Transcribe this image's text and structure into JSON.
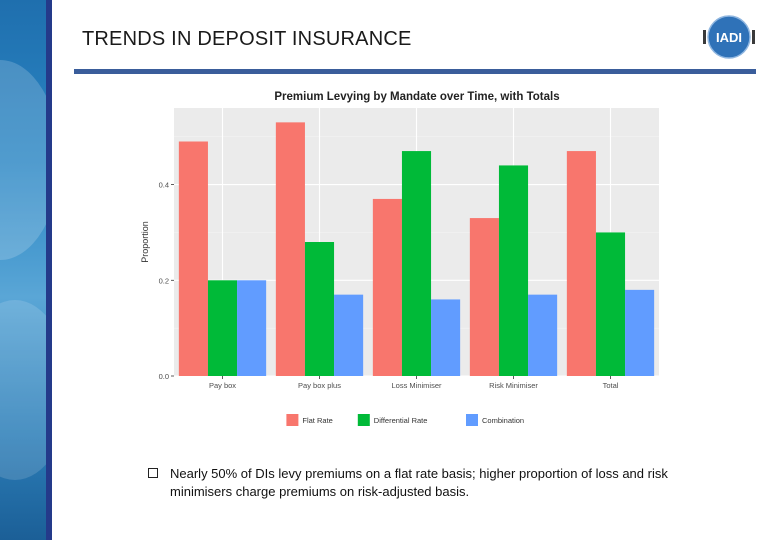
{
  "slide": {
    "title": "TRENDS IN DEPOSIT INSURANCE",
    "logo_text": "IADI",
    "bullet": "Nearly 50% of DIs levy premiums on a flat rate basis; higher proportion of loss and risk minimisers charge premiums on risk-adjusted basis."
  },
  "chart_data": {
    "type": "bar",
    "title": "Premium Levying by Mandate over Time, with Totals",
    "xlabel": "",
    "ylabel": "Proportion",
    "categories": [
      "Pay box",
      "Pay box plus",
      "Loss Minimiser",
      "Risk Minimiser",
      "Total"
    ],
    "series": [
      {
        "name": "Flat Rate",
        "color": "#F8766D",
        "values": [
          0.49,
          0.53,
          0.37,
          0.33,
          0.47
        ]
      },
      {
        "name": "Differential Rate",
        "color": "#00BA38",
        "values": [
          0.2,
          0.28,
          0.47,
          0.44,
          0.3
        ]
      },
      {
        "name": "Combination",
        "color": "#619CFF",
        "values": [
          0.2,
          0.17,
          0.16,
          0.17,
          0.18
        ]
      }
    ],
    "ylim": [
      0,
      0.56
    ],
    "yticks": [
      0.0,
      0.2,
      0.4
    ],
    "ytick_labels": [
      "0.0",
      "0.2",
      "0.4"
    ],
    "grid": true,
    "legend_position": "bottom"
  }
}
